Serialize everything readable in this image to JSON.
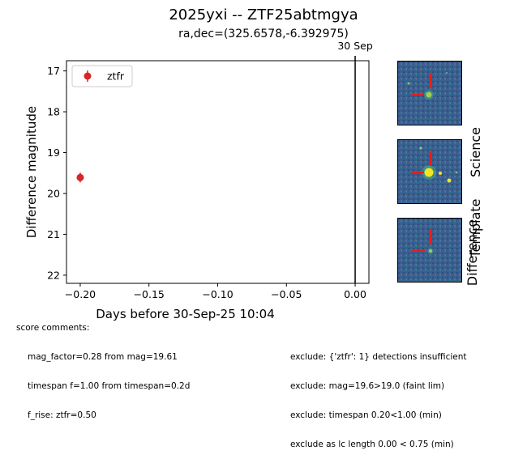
{
  "title": "2025yxi -- ZTF25abtmgya",
  "subtitle": "ra,dec=(325.6578,-6.392975)",
  "chart_data": {
    "type": "scatter",
    "xlabel": "Days before 30-Sep-25 10:04",
    "ylabel": "Difference magnitude",
    "xlim": [
      -0.21,
      0.01
    ],
    "ylim": [
      22.2,
      16.75
    ],
    "y_inverted": true,
    "xticks": [
      -0.2,
      -0.15,
      -0.1,
      -0.05,
      0.0
    ],
    "xtick_labels": [
      "−0.20",
      "−0.15",
      "−0.10",
      "−0.05",
      "0.00"
    ],
    "yticks": [
      17,
      18,
      19,
      20,
      21,
      22
    ],
    "ytick_labels": [
      "17",
      "18",
      "19",
      "20",
      "21",
      "22"
    ],
    "legend_position": "top-left",
    "grid": false,
    "series": [
      {
        "name": "ztfr",
        "color": "#d62728",
        "points": [
          {
            "x": -0.2,
            "y": 19.61,
            "yerr": 0.12
          }
        ]
      }
    ],
    "annotations": [
      {
        "x": 0.0,
        "label": "30 Sep"
      }
    ]
  },
  "stamps": {
    "colors": {
      "background": "#3a5f8f",
      "source": "#f4e61c",
      "marker": "#e0201e"
    },
    "labels": [
      "Science",
      "Template",
      "Difference"
    ]
  },
  "comments": {
    "score_title": "score comments:",
    "score_lines": [
      "mag_factor=0.28 from mag=19.61",
      "timespan f=1.00 from timespan=0.2d",
      "f_rise: ztfr=0.50"
    ],
    "exclude_lines": [
      "exclude: {'ztfr': 1} detections insufficient",
      "exclude: mag=19.6>19.0 (faint lim)",
      "exclude: timespan 0.20<1.00 (min)",
      "exclude as lc length 0.00 < 0.75 (min)"
    ]
  }
}
